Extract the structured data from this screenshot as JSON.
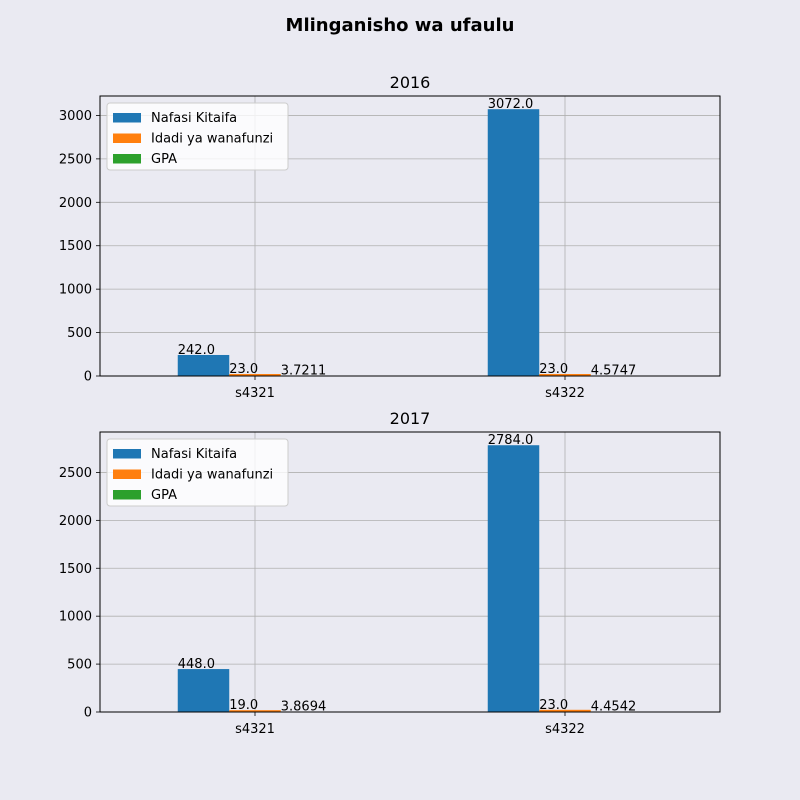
{
  "figure": {
    "title": "Mlinganisho wa ufaulu",
    "background": "#eaeaf2"
  },
  "chart_data": [
    {
      "type": "bar",
      "title": "2016",
      "categories": [
        "s4321",
        "s4322"
      ],
      "series": [
        {
          "name": "Nafasi Kitaifa",
          "values": [
            242.0,
            3072.0
          ],
          "labels": [
            "242.0",
            "3072.0"
          ],
          "color": "#1f77b4"
        },
        {
          "name": "Idadi ya wanafunzi",
          "values": [
            23.0,
            23.0
          ],
          "labels": [
            "23.0",
            "23.0"
          ],
          "color": "#ff7f0e"
        },
        {
          "name": "GPA",
          "values": [
            3.7211,
            4.5747
          ],
          "labels": [
            "3.7211",
            "4.5747"
          ],
          "color": "#2ca02c"
        }
      ],
      "ylim": [
        0,
        3224
      ],
      "yticks": [
        0,
        500,
        1000,
        1500,
        2000,
        2500,
        3000
      ],
      "grid": true,
      "legend": "upper-left"
    },
    {
      "type": "bar",
      "title": "2017",
      "categories": [
        "s4321",
        "s4322"
      ],
      "series": [
        {
          "name": "Nafasi Kitaifa",
          "values": [
            448.0,
            2784.0
          ],
          "labels": [
            "448.0",
            "2784.0"
          ],
          "color": "#1f77b4"
        },
        {
          "name": "Idadi ya wanafunzi",
          "values": [
            19.0,
            23.0
          ],
          "labels": [
            "19.0",
            "23.0"
          ],
          "color": "#ff7f0e"
        },
        {
          "name": "GPA",
          "values": [
            3.8694,
            4.4542
          ],
          "labels": [
            "3.8694",
            "4.4542"
          ],
          "color": "#2ca02c"
        }
      ],
      "ylim": [
        0,
        2922
      ],
      "yticks": [
        0,
        500,
        1000,
        1500,
        2000,
        2500
      ],
      "grid": true,
      "legend": "upper-left"
    }
  ]
}
